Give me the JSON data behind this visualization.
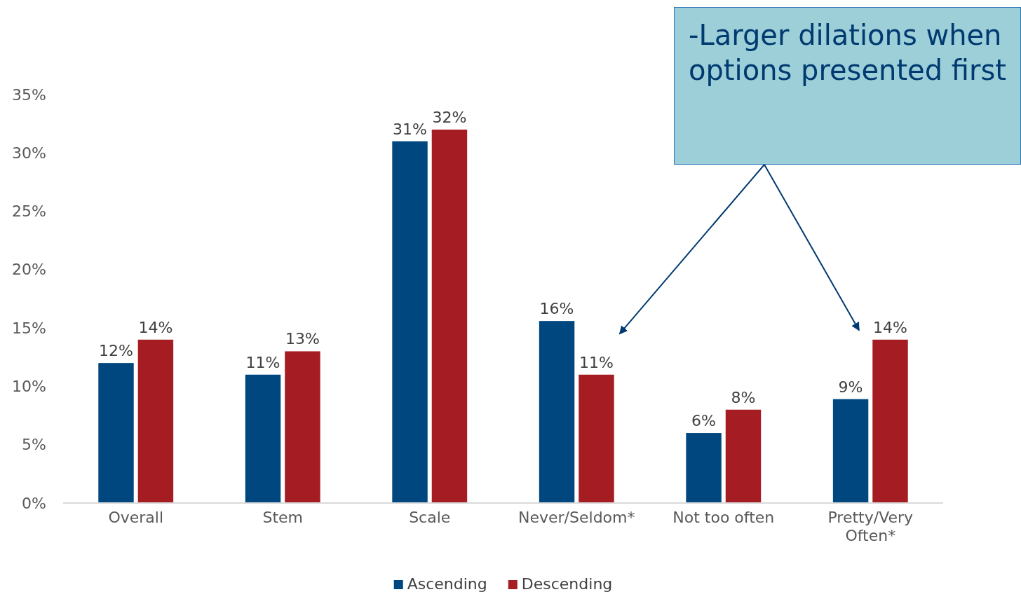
{
  "chart_data": {
    "type": "bar",
    "categories": [
      "Overall",
      "Stem",
      "Scale",
      "Never/Seldom*",
      "Not too often",
      "Pretty/Very Often*"
    ],
    "series": [
      {
        "name": "Ascending",
        "color": "#00467f",
        "values": [
          12,
          11,
          31,
          15.6,
          6,
          8.9
        ],
        "value_labels": [
          "12%",
          "11%",
          "31%",
          "16%",
          "6%",
          "9%"
        ]
      },
      {
        "name": "Descending",
        "color": "#a51c22",
        "values": [
          14,
          13,
          32,
          11,
          8,
          14
        ],
        "value_labels": [
          "14%",
          "13%",
          "32%",
          "11%",
          "8%",
          "14%"
        ]
      }
    ],
    "ylim": [
      0,
      35
    ],
    "yticks": [
      {
        "value": 0,
        "label": "0%"
      },
      {
        "value": 5,
        "label": "5%"
      },
      {
        "value": 10,
        "label": "10%"
      },
      {
        "value": 15,
        "label": "15%"
      },
      {
        "value": 20,
        "label": "20%"
      },
      {
        "value": 25,
        "label": "25%"
      },
      {
        "value": 30,
        "label": "30%"
      },
      {
        "value": 35,
        "label": "35%"
      }
    ],
    "grid": false,
    "legend": "bottom",
    "annotations": [
      "-Larger dilations when options presented first"
    ]
  }
}
